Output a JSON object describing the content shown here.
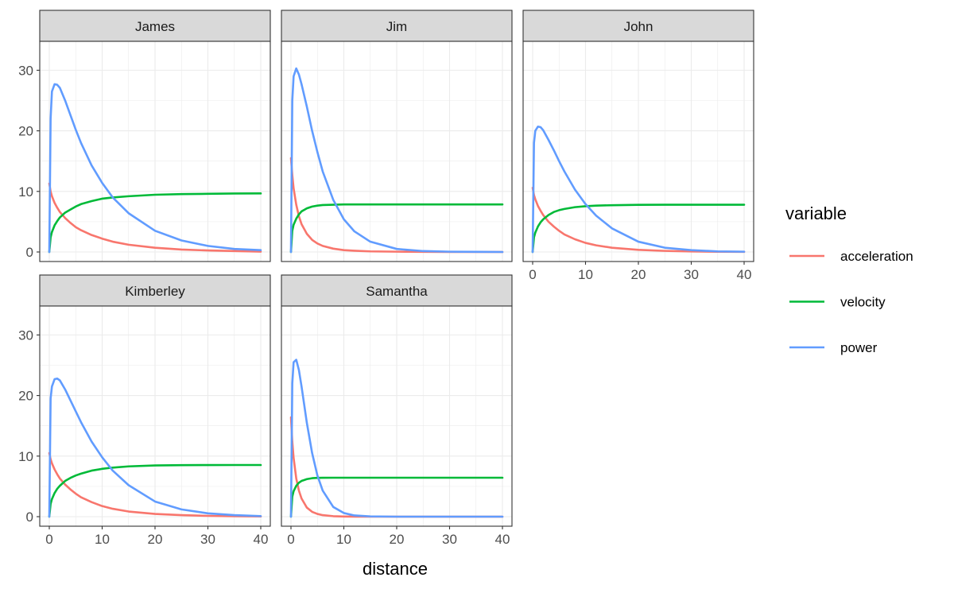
{
  "chart_data": {
    "type": "line",
    "facet_by": "name",
    "xlabel": "distance",
    "ylabel": "",
    "xlim": [
      0,
      40
    ],
    "ylim": [
      0,
      30
    ],
    "x_ticks": [
      0,
      10,
      20,
      30,
      40
    ],
    "y_ticks": [
      0,
      10,
      20,
      30
    ],
    "grid": true,
    "legend": {
      "title": "variable",
      "position": "right",
      "entries": [
        {
          "name": "acceleration",
          "color": "#F8766D"
        },
        {
          "name": "velocity",
          "color": "#00BA38"
        },
        {
          "name": "power",
          "color": "#619CFF"
        }
      ]
    },
    "x": [
      0,
      0.25,
      0.5,
      1,
      1.5,
      2,
      3,
      4,
      5,
      6,
      8,
      10,
      12,
      15,
      20,
      25,
      30,
      35,
      40
    ],
    "panels": [
      {
        "label": "James",
        "series": [
          {
            "name": "acceleration",
            "values": [
              11.3,
              10.0,
              9.2,
              8.1,
              7.3,
              6.6,
              5.6,
              4.8,
              4.1,
              3.6,
              2.8,
              2.2,
              1.7,
              1.2,
              0.7,
              0.4,
              0.25,
              0.15,
              0.05
            ]
          },
          {
            "name": "velocity",
            "values": [
              0.0,
              2.4,
              3.3,
              4.4,
              5.1,
              5.7,
              6.5,
              7.0,
              7.5,
              7.9,
              8.4,
              8.8,
              9.0,
              9.2,
              9.45,
              9.55,
              9.6,
              9.65,
              9.67
            ]
          },
          {
            "name": "power",
            "values": [
              0.0,
              22.0,
              26.5,
              27.7,
              27.6,
              27.1,
              25.0,
              22.6,
              20.2,
              18.0,
              14.3,
              11.4,
              9.0,
              6.4,
              3.5,
              1.9,
              1.0,
              0.5,
              0.3
            ]
          }
        ]
      },
      {
        "label": "Jim",
        "series": [
          {
            "name": "acceleration",
            "values": [
              15.5,
              12.7,
              10.5,
              7.8,
              5.9,
              4.6,
              3.0,
              2.0,
              1.4,
              1.0,
              0.55,
              0.3,
              0.2,
              0.1,
              0.05,
              0.02,
              0.01,
              0.0,
              0.0
            ]
          },
          {
            "name": "velocity",
            "values": [
              0.0,
              3.5,
              4.5,
              5.5,
              6.2,
              6.7,
              7.2,
              7.5,
              7.65,
              7.75,
              7.8,
              7.85,
              7.85,
              7.85,
              7.85,
              7.85,
              7.85,
              7.85,
              7.85
            ]
          },
          {
            "name": "power",
            "values": [
              0.0,
              25.0,
              29.0,
              30.3,
              29.3,
              27.7,
              24.0,
              20.0,
              16.5,
              13.3,
              8.6,
              5.4,
              3.4,
              1.7,
              0.5,
              0.15,
              0.05,
              0.02,
              0.0
            ]
          }
        ]
      },
      {
        "label": "John",
        "series": [
          {
            "name": "acceleration",
            "values": [
              10.6,
              9.4,
              8.7,
              7.6,
              6.8,
              6.1,
              5.0,
              4.2,
              3.5,
              2.9,
              2.1,
              1.5,
              1.1,
              0.7,
              0.35,
              0.18,
              0.09,
              0.04,
              0.02
            ]
          },
          {
            "name": "velocity",
            "values": [
              0.0,
              2.4,
              3.2,
              4.2,
              4.9,
              5.4,
              6.1,
              6.6,
              6.9,
              7.1,
              7.4,
              7.55,
              7.65,
              7.72,
              7.78,
              7.8,
              7.8,
              7.8,
              7.8
            ]
          },
          {
            "name": "power",
            "values": [
              0.0,
              18.0,
              20.0,
              20.7,
              20.6,
              20.1,
              18.5,
              16.8,
              15.0,
              13.3,
              10.3,
              7.9,
              6.0,
              3.9,
              1.7,
              0.7,
              0.3,
              0.1,
              0.05
            ]
          }
        ]
      },
      {
        "label": "Kimberley",
        "series": [
          {
            "name": "acceleration",
            "values": [
              10.5,
              9.5,
              8.8,
              7.8,
              7.0,
              6.3,
              5.3,
              4.5,
              3.8,
              3.2,
              2.4,
              1.75,
              1.3,
              0.85,
              0.45,
              0.25,
              0.13,
              0.07,
              0.04
            ]
          },
          {
            "name": "velocity",
            "values": [
              0.0,
              2.1,
              2.9,
              3.9,
              4.6,
              5.1,
              5.9,
              6.4,
              6.8,
              7.1,
              7.6,
              7.9,
              8.1,
              8.3,
              8.45,
              8.5,
              8.52,
              8.53,
              8.53
            ]
          },
          {
            "name": "power",
            "values": [
              0.0,
              19.5,
              21.5,
              22.7,
              22.8,
              22.5,
              21.0,
              19.2,
              17.4,
              15.6,
              12.4,
              9.8,
              7.6,
              5.2,
              2.5,
              1.2,
              0.55,
              0.25,
              0.1
            ]
          }
        ]
      },
      {
        "label": "Samantha",
        "series": [
          {
            "name": "acceleration",
            "values": [
              16.4,
              12.4,
              9.7,
              6.3,
              4.3,
              3.0,
              1.5,
              0.8,
              0.45,
              0.25,
              0.08,
              0.03,
              0.01,
              0.0,
              0.0,
              0.0,
              0.0,
              0.0,
              0.0
            ]
          },
          {
            "name": "velocity",
            "values": [
              0.0,
              3.3,
              4.2,
              5.1,
              5.6,
              5.9,
              6.2,
              6.35,
              6.4,
              6.42,
              6.43,
              6.43,
              6.43,
              6.43,
              6.43,
              6.43,
              6.43,
              6.43,
              6.43
            ]
          },
          {
            "name": "power",
            "values": [
              0.0,
              22.0,
              25.5,
              25.9,
              24.2,
              21.5,
              15.5,
              10.5,
              6.8,
              4.3,
              1.6,
              0.6,
              0.2,
              0.05,
              0.0,
              0.0,
              0.0,
              0.0,
              0.0
            ]
          }
        ]
      }
    ]
  }
}
